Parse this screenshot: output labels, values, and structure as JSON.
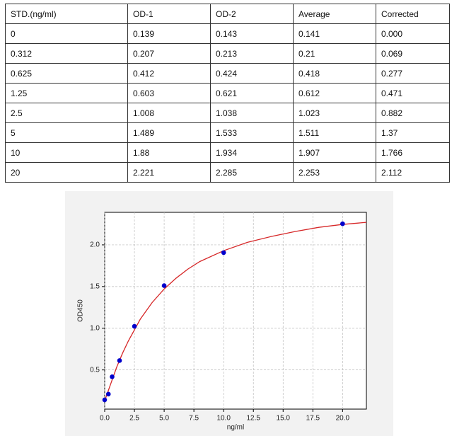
{
  "table": {
    "header": [
      "STD.(ng/ml)",
      "OD-1",
      "OD-2",
      "Average",
      "Corrected"
    ],
    "rows": [
      [
        "0",
        "0.139",
        "0.143",
        "0.141",
        "0.000"
      ],
      [
        "0.312",
        "0.207",
        "0.213",
        "0.21",
        "0.069"
      ],
      [
        "0.625",
        "0.412",
        "0.424",
        "0.418",
        "0.277"
      ],
      [
        "1.25",
        "0.603",
        "0.621",
        "0.612",
        "0.471"
      ],
      [
        "2.5",
        "1.008",
        "1.038",
        "1.023",
        "0.882"
      ],
      [
        "5",
        "1.489",
        "1.533",
        "1.511",
        "1.37"
      ],
      [
        "10",
        "1.88",
        "1.934",
        "1.907",
        "1.766"
      ],
      [
        "20",
        "2.221",
        "2.285",
        "2.253",
        "2.112"
      ]
    ]
  },
  "chart_data": {
    "type": "scatter",
    "x_label": "ng/ml",
    "y_label": "OD450",
    "series": [
      {
        "color": "#0000cc",
        "x": [
          0,
          0.312,
          0.625,
          1.25,
          2.5,
          5,
          10,
          20
        ],
        "values": [
          0.141,
          0.21,
          0.418,
          0.612,
          1.023,
          1.511,
          1.907,
          2.253
        ]
      },
      {
        "color": "#d62728",
        "x": [
          0,
          0.5,
          1,
          1.5,
          2,
          3,
          4,
          5,
          6,
          7,
          8,
          10,
          12,
          14,
          16,
          18,
          20,
          22
        ],
        "values": [
          0.13,
          0.33,
          0.53,
          0.7,
          0.85,
          1.11,
          1.31,
          1.47,
          1.6,
          1.71,
          1.8,
          1.93,
          2.03,
          2.1,
          2.16,
          2.21,
          2.245,
          2.27
        ]
      }
    ],
    "xlim": [
      0,
      22
    ],
    "ylim": [
      0.03,
      2.39
    ],
    "xticks": [
      {
        "value": 0,
        "label": "0.0"
      },
      {
        "value": 2.5,
        "label": "2.5"
      },
      {
        "value": 5,
        "label": "5.0"
      },
      {
        "value": 7.5,
        "label": "7.5"
      },
      {
        "value": 10,
        "label": "10.0"
      },
      {
        "value": 12.5,
        "label": "12.5"
      },
      {
        "value": 15,
        "label": "15.0"
      },
      {
        "value": 17.5,
        "label": "17.5"
      },
      {
        "value": 20,
        "label": "20.0"
      }
    ],
    "yticks": [
      {
        "value": 0.5,
        "label": "0.5"
      },
      {
        "value": 1,
        "label": "1.0"
      },
      {
        "value": 1.5,
        "label": "1.5"
      },
      {
        "value": 2,
        "label": "2.0"
      }
    ],
    "grid": true
  }
}
